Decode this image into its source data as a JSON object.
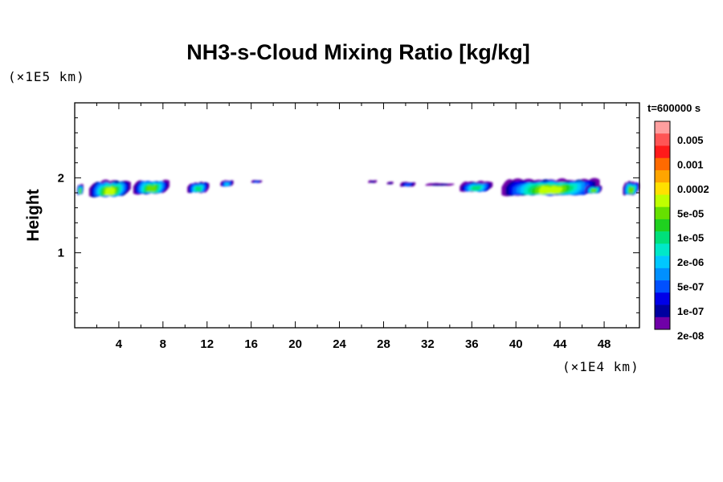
{
  "chart_data": {
    "type": "heatmap",
    "title": "NH3-s-Cloud Mixing Ratio [kg/kg]",
    "xlabel": "",
    "ylabel": "Height",
    "x_scale_label": "(×1E4 km)",
    "y_scale_label": "(×1E5 km)",
    "xlim": [
      0,
      51.2
    ],
    "ylim": [
      0,
      3
    ],
    "x_ticks": [
      "4",
      "8",
      "12",
      "16",
      "20",
      "24",
      "28",
      "32",
      "36",
      "40",
      "44",
      "48"
    ],
    "y_ticks": [
      "1",
      "2"
    ],
    "time_label": "t=600000 s",
    "colorbar": {
      "labels": [
        "0.005",
        "0.001",
        "0.0002",
        "5e-05",
        "1e-05",
        "2e-06",
        "5e-07",
        "1e-07",
        "2e-08"
      ],
      "colors_top_to_bottom": [
        "#ff9f9f",
        "#ff5555",
        "#ff1a1a",
        "#ff6a00",
        "#ffa500",
        "#ffe000",
        "#bfff00",
        "#66e000",
        "#1fd11f",
        "#00e07a",
        "#00e8c8",
        "#00c8ff",
        "#0090ff",
        "#0050ff",
        "#0000e8",
        "#0000a0",
        "#7000a8"
      ]
    },
    "cloud_patches": [
      {
        "x_start": 0.2,
        "x_end": 0.8,
        "y_bottom": 1.77,
        "y_top": 1.92,
        "max_level": "1e-05"
      },
      {
        "x_start": 1.3,
        "x_end": 5.1,
        "y_bottom": 1.74,
        "y_top": 1.97,
        "max_level": "5e-05"
      },
      {
        "x_start": 5.3,
        "x_end": 8.6,
        "y_bottom": 1.78,
        "y_top": 1.99,
        "max_level": "1e-05"
      },
      {
        "x_start": 10.2,
        "x_end": 12.2,
        "y_bottom": 1.8,
        "y_top": 1.95,
        "max_level": "2e-06"
      },
      {
        "x_start": 13.2,
        "x_end": 14.4,
        "y_bottom": 1.88,
        "y_top": 1.97,
        "max_level": "5e-07"
      },
      {
        "x_start": 16.0,
        "x_end": 17.0,
        "y_bottom": 1.93,
        "y_top": 1.97,
        "max_level": "1e-07"
      },
      {
        "x_start": 26.6,
        "x_end": 27.4,
        "y_bottom": 1.93,
        "y_top": 1.97,
        "max_level": "2e-08"
      },
      {
        "x_start": 28.3,
        "x_end": 28.9,
        "y_bottom": 1.91,
        "y_top": 1.95,
        "max_level": "2e-08"
      },
      {
        "x_start": 29.5,
        "x_end": 30.9,
        "y_bottom": 1.88,
        "y_top": 1.95,
        "max_level": "1e-07"
      },
      {
        "x_start": 31.8,
        "x_end": 34.4,
        "y_bottom": 1.89,
        "y_top": 1.93,
        "max_level": "2e-08"
      },
      {
        "x_start": 34.9,
        "x_end": 37.9,
        "y_bottom": 1.81,
        "y_top": 1.96,
        "max_level": "2e-06"
      },
      {
        "x_start": 38.7,
        "x_end": 47.6,
        "y_bottom": 1.76,
        "y_top": 1.99,
        "max_level": "5e-05"
      },
      {
        "x_start": 46.3,
        "x_end": 47.8,
        "y_bottom": 1.79,
        "y_top": 1.9,
        "max_level": "1e-05"
      },
      {
        "x_start": 49.7,
        "x_end": 51.2,
        "y_bottom": 1.77,
        "y_top": 1.96,
        "max_level": "1e-05"
      }
    ]
  }
}
